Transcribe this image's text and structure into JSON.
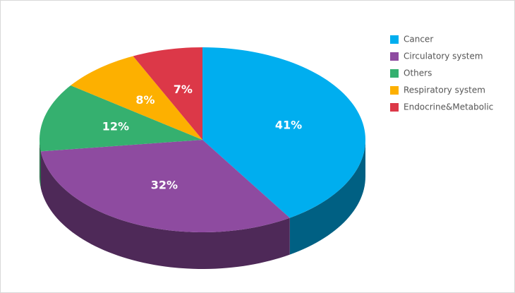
{
  "chart_data": {
    "type": "pie",
    "three_d": true,
    "categories": [
      "Cancer",
      "Circulatory system",
      "Others",
      "Respiratory system",
      "Endocrine&Metabolic"
    ],
    "values": [
      41,
      32,
      12,
      8,
      7
    ],
    "value_labels": [
      "41%",
      "32%",
      "12%",
      "8%",
      "7%"
    ],
    "colors": [
      "#00aeef",
      "#8e4ba0",
      "#35b06f",
      "#fdb000",
      "#dc3848"
    ],
    "legend": "right"
  }
}
